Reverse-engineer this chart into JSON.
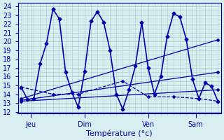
{
  "background_color": "#d8eef0",
  "grid_color": "#aacccc",
  "line_color": "#0000aa",
  "title": "Température (°c)",
  "ylabel_ticks": [
    12,
    13,
    14,
    15,
    16,
    17,
    18,
    19,
    20,
    21,
    22,
    23,
    24
  ],
  "ylim": [
    11.8,
    24.4
  ],
  "xlim": [
    -0.5,
    31.5
  ],
  "day_ticks": [
    {
      "x": 1.5,
      "label": "Jeu"
    },
    {
      "x": 10.0,
      "label": "Dim"
    },
    {
      "x": 20.0,
      "label": "Ven"
    },
    {
      "x": 27.5,
      "label": "Sam"
    }
  ],
  "series_main": [
    0,
    14.8,
    1,
    13.4,
    2,
    13.5,
    3,
    17.5,
    4,
    19.8,
    5,
    23.7,
    6,
    22.6,
    7,
    16.5,
    8,
    14.2,
    9,
    12.5,
    10,
    16.6,
    11,
    22.3,
    12,
    23.4,
    13,
    22.2,
    14,
    19.0,
    15,
    14.0,
    16,
    12.3,
    17,
    14.5,
    18,
    17.2,
    19,
    22.2,
    20,
    17.0,
    21,
    14.0,
    22,
    16.0,
    23,
    20.6,
    24,
    23.2,
    25,
    22.8,
    26,
    20.3,
    27,
    15.7,
    28,
    13.5,
    29,
    15.3,
    30,
    14.9,
    31,
    13.2
  ],
  "series_diag1": [
    0,
    13.5,
    31,
    20.2
  ],
  "series_diag2": [
    0,
    13.3,
    31,
    16.5
  ],
  "series_diag3": [
    0,
    13.2,
    31,
    14.5
  ],
  "series_flat": [
    0,
    14.8,
    5,
    14.0,
    9,
    14.0,
    16,
    15.5,
    20,
    13.7,
    24,
    13.7,
    28,
    13.5,
    31,
    13.2
  ]
}
